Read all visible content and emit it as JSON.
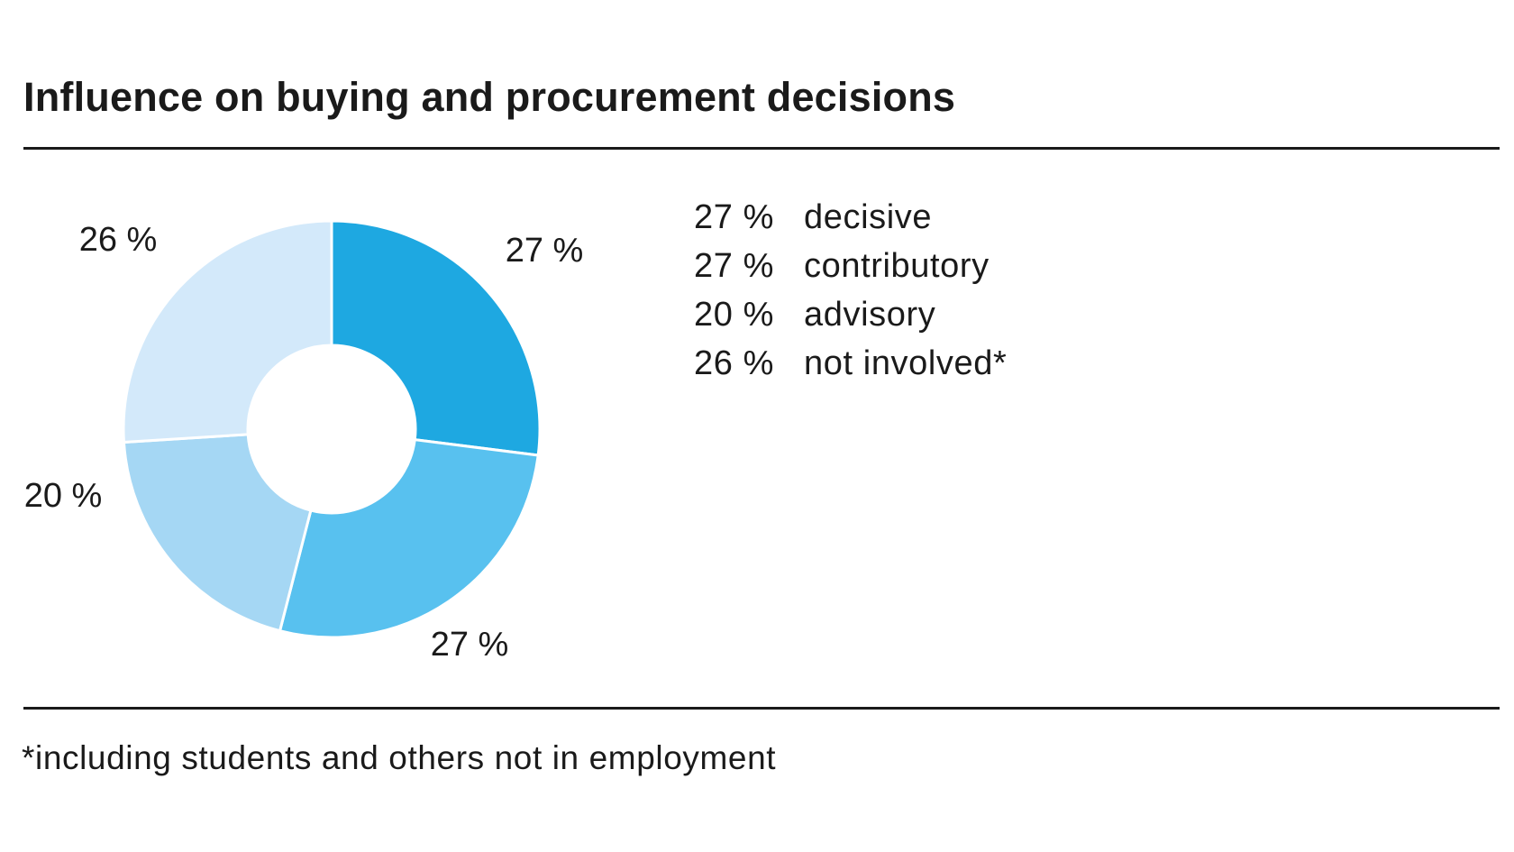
{
  "title": "Influence on buying and procurement decisions",
  "footnote": "*including students and others not in employment",
  "chart_data": {
    "type": "pie",
    "variant": "donut",
    "title": "Influence on buying and procurement decisions",
    "unit": "%",
    "categories": [
      "decisive",
      "contributory",
      "advisory",
      "not involved*"
    ],
    "values": [
      27,
      27,
      20,
      26
    ],
    "labels": [
      "27 %",
      "27 %",
      "20 %",
      "26 %"
    ],
    "colors": [
      "#1ea8e1",
      "#58c1ef",
      "#a5d7f4",
      "#d3e9fa"
    ],
    "legend_placement": "right",
    "start_angle_deg": 0,
    "direction": "clockwise"
  },
  "legend": [
    {
      "value": "27 %",
      "label": "decisive"
    },
    {
      "value": "27 %",
      "label": "contributory"
    },
    {
      "value": "20 %",
      "label": "advisory"
    },
    {
      "value": "26 %",
      "label": "not involved*"
    }
  ]
}
